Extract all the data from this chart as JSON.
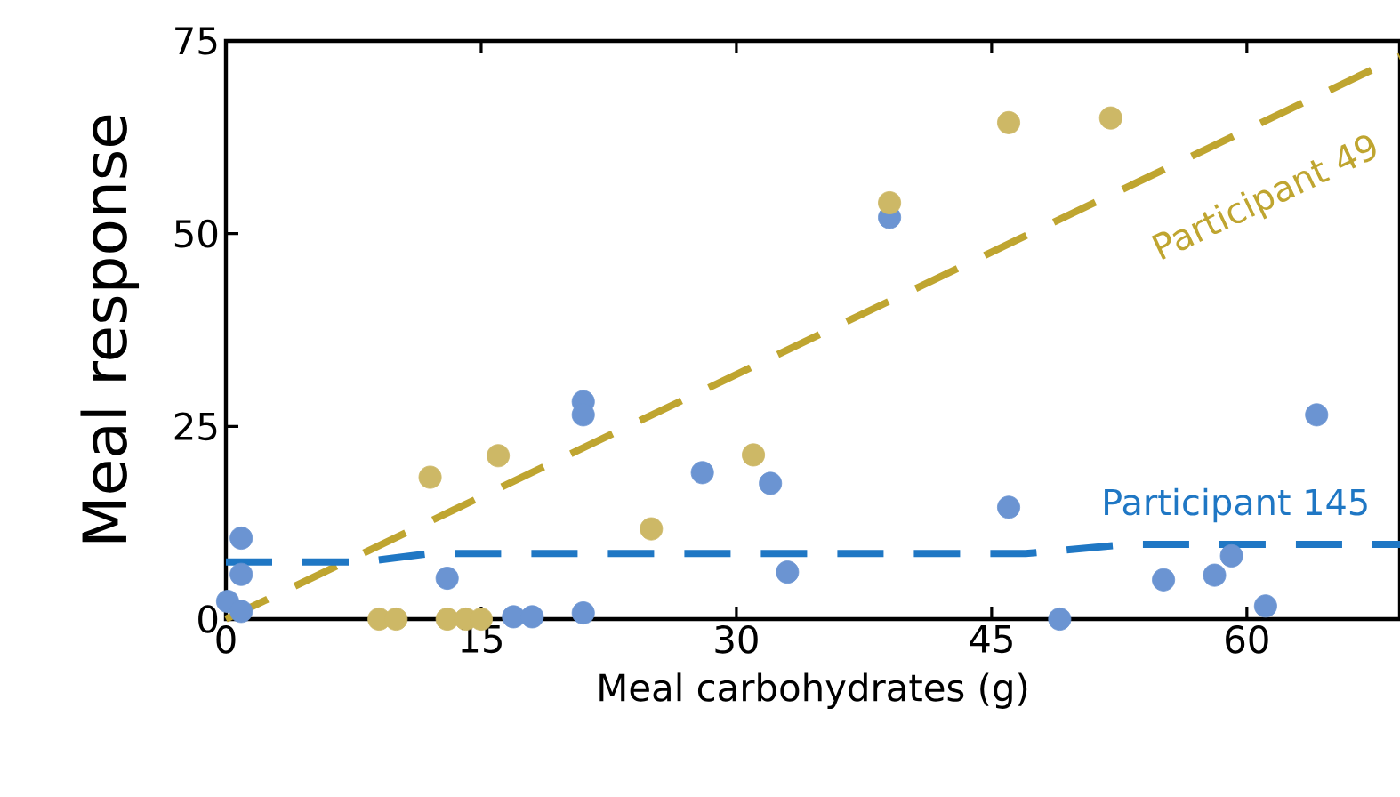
{
  "chart_data": {
    "type": "scatter",
    "xlabel": "Meal carbohydrates (g)",
    "ylabel": "Meal response",
    "xlim": [
      0,
      69
    ],
    "ylim": [
      0,
      75
    ],
    "xticks": [
      0,
      15,
      30,
      45,
      60
    ],
    "yticks": [
      0,
      25,
      50,
      75
    ],
    "grid": false,
    "series": [
      {
        "type": "scatter",
        "color": "#6b94d2",
        "marker": "circle",
        "x": [
          0.9,
          0.9,
          0.1,
          0.9,
          13,
          16.9,
          18,
          21,
          21,
          21,
          28,
          32,
          33,
          39,
          46,
          49,
          55.1,
          58.1,
          59.1,
          61.1,
          64.1
        ],
        "values": [
          10.5,
          5.8,
          2.3,
          1,
          5.3,
          0.3,
          0.3,
          28.2,
          26.5,
          0.8,
          19,
          17.6,
          6.1,
          52.1,
          14.5,
          0,
          5.1,
          5.7,
          8.2,
          1.7,
          26.5
        ]
      },
      {
        "type": "scatter",
        "color": "#cdb866",
        "marker": "circle",
        "x": [
          12,
          16,
          9,
          10,
          13,
          14.1,
          15,
          25,
          31,
          39,
          46,
          52
        ],
        "values": [
          18.4,
          21.2,
          0,
          0,
          0,
          0,
          0,
          11.7,
          21.3,
          54,
          64.4,
          65
        ]
      },
      {
        "type": "line",
        "color": "#bfa530",
        "line_style": "dashed",
        "marker": "none",
        "x": [
          0,
          69
        ],
        "values": [
          0,
          73
        ]
      },
      {
        "type": "line",
        "color": "#1f77c4",
        "line_style": "dashed",
        "marker": "none",
        "x": [
          0,
          8,
          12,
          47,
          53,
          69
        ],
        "values": [
          7.4,
          7.4,
          8.5,
          8.5,
          9.7,
          9.7
        ]
      }
    ],
    "annotations": [
      "Participant 49",
      "Participant 145"
    ]
  }
}
